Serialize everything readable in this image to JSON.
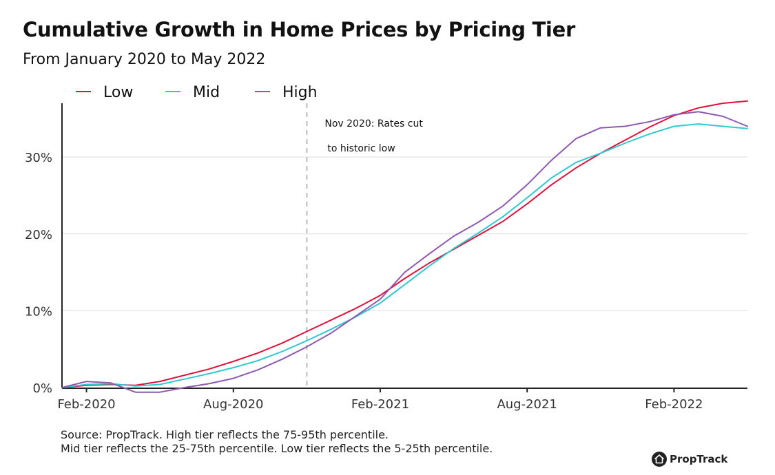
{
  "chart_data": {
    "type": "line",
    "title": "Cumulative Growth in Home Prices by Pricing Tier",
    "subtitle": "From January 2020 to May 2022",
    "x": [
      "2020-01",
      "2020-02",
      "2020-03",
      "2020-04",
      "2020-05",
      "2020-06",
      "2020-07",
      "2020-08",
      "2020-09",
      "2020-10",
      "2020-11",
      "2020-12",
      "2021-01",
      "2021-02",
      "2021-03",
      "2021-04",
      "2021-05",
      "2021-06",
      "2021-07",
      "2021-08",
      "2021-09",
      "2021-10",
      "2021-11",
      "2021-12",
      "2022-01",
      "2022-02",
      "2022-03",
      "2022-04",
      "2022-05"
    ],
    "x_tick_labels": [
      "Feb-2020",
      "Aug-2020",
      "Feb-2021",
      "Aug-2021",
      "Feb-2022"
    ],
    "x_tick_values": [
      "2020-02",
      "2020-08",
      "2021-02",
      "2021-08",
      "2022-02"
    ],
    "y_tick_labels": [
      "0%",
      "10%",
      "20%",
      "30%"
    ],
    "y_tick_values": [
      0,
      10,
      20,
      30
    ],
    "ylim": [
      0,
      37
    ],
    "y_unit": "%",
    "grid": "horizontal",
    "legend_position": "top-left",
    "series": [
      {
        "name": "Low",
        "color": "#e0103a",
        "values": [
          0.0,
          0.3,
          0.4,
          0.3,
          0.8,
          1.6,
          2.4,
          3.4,
          4.5,
          5.8,
          7.3,
          8.8,
          10.3,
          12.0,
          14.2,
          16.2,
          18.0,
          19.8,
          21.6,
          23.9,
          26.4,
          28.6,
          30.5,
          32.2,
          33.9,
          35.4,
          36.4,
          37.0,
          37.3
        ]
      },
      {
        "name": "Mid",
        "color": "#2ec8d2",
        "values": [
          0.0,
          0.4,
          0.5,
          0.2,
          0.4,
          1.1,
          1.8,
          2.6,
          3.5,
          4.7,
          6.1,
          7.6,
          9.2,
          11.0,
          13.4,
          15.8,
          18.1,
          20.1,
          22.2,
          24.7,
          27.3,
          29.3,
          30.5,
          31.8,
          33.0,
          34.0,
          34.3,
          34.0,
          33.7
        ]
      },
      {
        "name": "High",
        "color": "#8e59b0",
        "values": [
          0.0,
          0.8,
          0.6,
          -0.6,
          -0.6,
          0.0,
          0.5,
          1.2,
          2.3,
          3.7,
          5.3,
          7.1,
          9.3,
          11.5,
          15.0,
          17.4,
          19.7,
          21.5,
          23.6,
          26.4,
          29.6,
          32.4,
          33.8,
          34.0,
          34.6,
          35.5,
          35.9,
          35.3,
          34.0
        ]
      }
    ],
    "annotations": [
      {
        "x": "2020-11",
        "lines": [
          "Nov 2020: Rates cut",
          "to historic low"
        ],
        "style": "dashed-vertical-line"
      }
    ]
  },
  "footer": {
    "source_line1": "Source: PropTrack. High tier reflects the 75-95th percentile.",
    "source_line2": "Mid tier reflects the 25-75th percentile. Low tier reflects the 5-25th percentile."
  },
  "brand": {
    "name": "PropTrack",
    "icon": "house-icon"
  }
}
